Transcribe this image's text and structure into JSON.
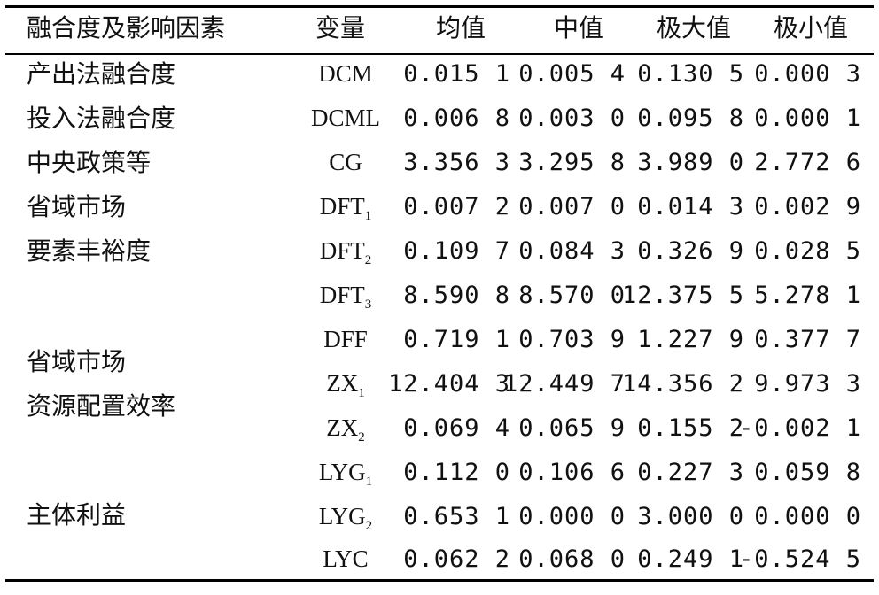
{
  "header": {
    "factor": "融合度及影响因素",
    "variable": "变量",
    "mean": "均值",
    "median": "中值",
    "max": "极大值",
    "min": "极小值"
  },
  "factors": {
    "f1": "产出法融合度",
    "f2": "投入法融合度",
    "f3": "中央政策等",
    "f4_line1": "省域市场",
    "f4_line2": "要素丰裕度",
    "f5_line1": "省域市场",
    "f5_line2": "资源配置效率",
    "f6": "主体利益"
  },
  "rows": [
    {
      "var": "DCM",
      "sub": "",
      "mean": "0.015 1",
      "median": "0.005 4",
      "max": "0.130 5",
      "min": "0.000 3"
    },
    {
      "var": "DCML",
      "sub": "",
      "mean": "0.006 8",
      "median": "0.003 0",
      "max": "0.095 8",
      "min": "0.000 1"
    },
    {
      "var": "CG",
      "sub": "",
      "mean": "3.356 3",
      "median": "3.295 8",
      "max": "3.989 0",
      "min": "2.772 6"
    },
    {
      "var": "DFT",
      "sub": "1",
      "mean": "0.007 2",
      "median": "0.007 0",
      "max": "0.014 3",
      "min": "0.002 9"
    },
    {
      "var": "DFT",
      "sub": "2",
      "mean": "0.109 7",
      "median": "0.084 3",
      "max": "0.326 9",
      "min": "0.028 5"
    },
    {
      "var": "DFT",
      "sub": "3",
      "mean": "8.590 8",
      "median": "8.570 0",
      "max": "12.375 5",
      "min": "5.278 1"
    },
    {
      "var": "DFF",
      "sub": "",
      "mean": "0.719 1",
      "median": "0.703 9",
      "max": "1.227 9",
      "min": "0.377 7"
    },
    {
      "var": "ZX",
      "sub": "1",
      "mean": "12.404 3",
      "median": "12.449 7",
      "max": "14.356 2",
      "min": "9.973 3"
    },
    {
      "var": "ZX",
      "sub": "2",
      "mean": "0.069 4",
      "median": "0.065 9",
      "max": "0.155 2",
      "min": "-0.002 1"
    },
    {
      "var": "LYG",
      "sub": "1",
      "mean": "0.112 0",
      "median": "0.106 6",
      "max": "0.227 3",
      "min": "0.059 8"
    },
    {
      "var": "LYG",
      "sub": "2",
      "mean": "0.653 1",
      "median": "0.000 0",
      "max": "3.000 0",
      "min": "0.000 0"
    },
    {
      "var": "LYC",
      "sub": "",
      "mean": "0.062 2",
      "median": "0.068 0",
      "max": "0.249 1",
      "min": "-0.524 5"
    }
  ]
}
